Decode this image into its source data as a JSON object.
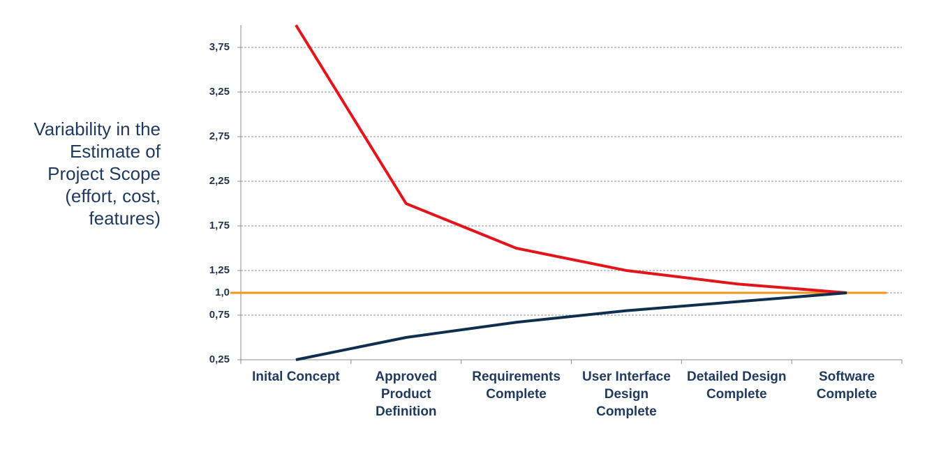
{
  "chart_data": {
    "type": "line",
    "ylabel": [
      "Variability in the",
      "Estimate of",
      "Project Scope",
      "(effort, cost,",
      "features)"
    ],
    "categories": [
      "Inital Concept",
      "Approved Product Definition",
      "Requirements Complete",
      "User Interface Design Complete",
      "Detailed Design Complete",
      "Software Complete"
    ],
    "series": [
      {
        "color": "#e3141b",
        "values": [
          4.0,
          2.0,
          1.5,
          1.25,
          1.1,
          1.0
        ]
      },
      {
        "color": "#0e2f4e",
        "values": [
          0.25,
          0.5,
          0.67,
          0.8,
          0.9,
          1.0
        ]
      }
    ],
    "reference_line": {
      "value": 1.0,
      "color": "#f7941d"
    },
    "ylim": [
      0.25,
      4.0
    ],
    "yticks": [
      {
        "value": 0.25,
        "label": "0,25"
      },
      {
        "value": 0.75,
        "label": "0,75"
      },
      {
        "value": 1.0,
        "label": "1,0"
      },
      {
        "value": 1.25,
        "label": "1,25"
      },
      {
        "value": 1.75,
        "label": "1,75"
      },
      {
        "value": 2.25,
        "label": "2,25"
      },
      {
        "value": 2.75,
        "label": "2,75"
      },
      {
        "value": 3.25,
        "label": "3,25"
      },
      {
        "value": 3.75,
        "label": "3,75"
      }
    ],
    "grid": true
  }
}
